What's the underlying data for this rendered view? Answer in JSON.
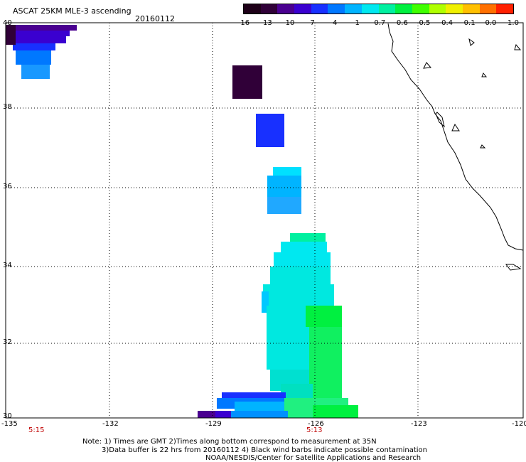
{
  "header": {
    "title": "ASCAT 25KM MLE-3 ascending",
    "date": "20160112"
  },
  "colorbar": {
    "labels": [
      "-16",
      "-13",
      "-10",
      "-7",
      "-4",
      "-1",
      "-0.7",
      "-0.6",
      "-0.5",
      "-0.4",
      "-0.1",
      "0.0",
      "1.0"
    ],
    "colors": [
      "#1e0018",
      "#300038",
      "#4a0090",
      "#3a00d0",
      "#1830ff",
      "#0078ff",
      "#00b4ff",
      "#00e8f0",
      "#00f0a0",
      "#00f040",
      "#40ff00",
      "#b0ff00",
      "#f0f000",
      "#ffc000",
      "#ff7000",
      "#ff2000"
    ]
  },
  "map": {
    "lon_ticks": [
      "-135",
      "-132",
      "-129",
      "-126",
      "-123",
      "-120"
    ],
    "lat_ticks": [
      "40",
      "38",
      "36",
      "34",
      "32",
      "30"
    ],
    "time_labels": [
      "5:15",
      "5:13"
    ]
  },
  "footer": {
    "line1": "Note: 1) Times are GMT 2)Times along bottom correspond to measurement at 35N",
    "line2": "3)Data buffer is 22 hrs from 20160112 4) Black wind barbs indicate possible contamination",
    "line3": "NOAA/NESDIS/Center for Satellite Applications and Research"
  }
}
